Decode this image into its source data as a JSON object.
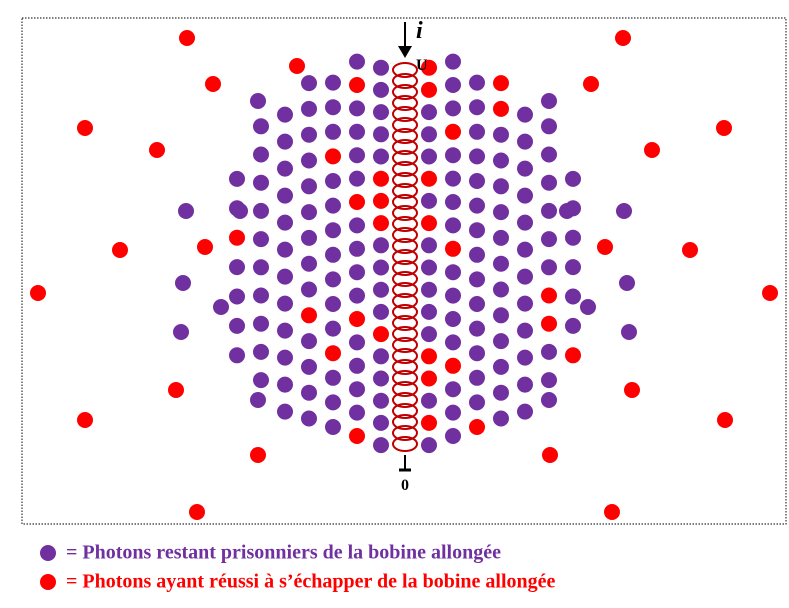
{
  "coil": {
    "current_label": "i",
    "top_label": "U",
    "bottom_label": "0"
  },
  "legend": [
    {
      "text": "=  Photons restant prisonniers de la bobine allongée"
    },
    {
      "text": "=  Photons ayant réussi à s’échapper de la bobine allongée"
    }
  ]
}
